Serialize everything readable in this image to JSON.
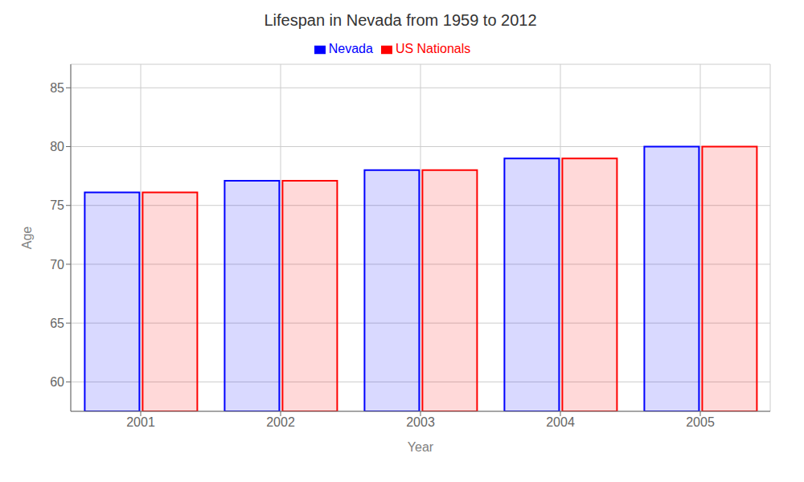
{
  "chart_data": {
    "type": "bar",
    "title": "Lifespan in Nevada from 1959 to 2012",
    "xlabel": "Year",
    "ylabel": "Age",
    "categories": [
      "2001",
      "2002",
      "2003",
      "2004",
      "2005"
    ],
    "series": [
      {
        "name": "Nevada",
        "color": "#0000ff",
        "values": [
          76.1,
          77.1,
          78.0,
          79.0,
          80.0
        ]
      },
      {
        "name": "US Nationals",
        "color": "#ff0000",
        "values": [
          76.1,
          77.1,
          78.0,
          79.0,
          80.0
        ]
      }
    ],
    "ylim": [
      57.5,
      87
    ],
    "yticks": [
      60,
      65,
      70,
      75,
      80,
      85
    ],
    "grid": true,
    "legend": "top"
  }
}
